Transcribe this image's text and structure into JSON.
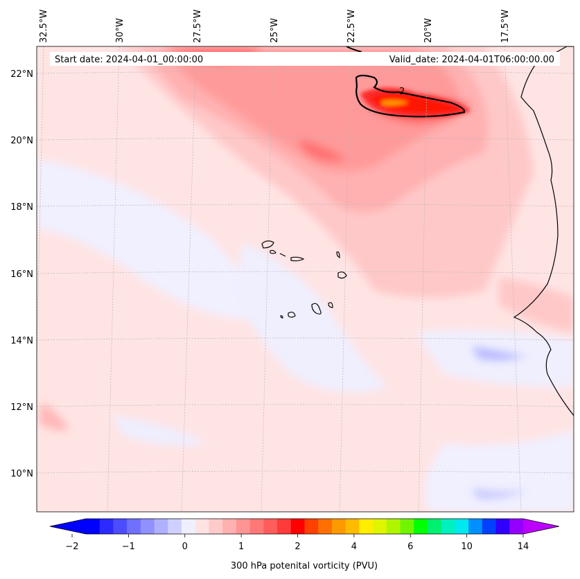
{
  "map": {
    "lon_ticks": [
      "32.5°W",
      "30°W",
      "27.5°W",
      "25°W",
      "22.5°W",
      "20°W",
      "17.5°W"
    ],
    "lat_ticks": [
      "22°N",
      "20°N",
      "18°N",
      "16°N",
      "14°N",
      "12°N",
      "10°N"
    ],
    "start_date": "Start date: 2024-04-01_00:00:00",
    "valid_date": "Valid_date: 2024-04-01T06:00:00.00",
    "contour_label": "2",
    "grid": true
  },
  "colorbar": {
    "label": "300 hPa potenital vorticity (PVU)",
    "tick_labels": [
      "−2",
      "−1",
      "0",
      "1",
      "2",
      "4",
      "6",
      "10",
      "14"
    ],
    "colors": [
      "#0000ff",
      "#2b2bff",
      "#4d4dff",
      "#7070ff",
      "#9090ff",
      "#b0b0ff",
      "#d0d0ff",
      "#efefff",
      "#ffe2e2",
      "#ffcaca",
      "#ffb0b0",
      "#ff9494",
      "#ff7878",
      "#ff5c5c",
      "#ff3a3a",
      "#ff0000",
      "#ff4000",
      "#ff7000",
      "#ff9900",
      "#ffbb00",
      "#ffee00",
      "#e0f500",
      "#b0f500",
      "#70f500",
      "#00ff00",
      "#00f070",
      "#00f0c0",
      "#00e8f0",
      "#0090ff",
      "#0040ff",
      "#3000ff",
      "#9400ff"
    ],
    "extend_min_color": "#0000ff",
    "extend_max_color": "#bb00ff"
  }
}
